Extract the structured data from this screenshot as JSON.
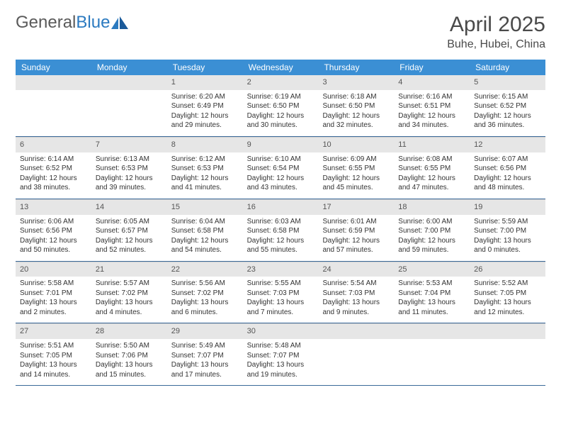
{
  "logo": {
    "word1": "General",
    "word2": "Blue"
  },
  "title": "April 2025",
  "location": "Buhe, Hubei, China",
  "colors": {
    "header_bg": "#3b8fd4",
    "header_text": "#ffffff",
    "daynum_bg": "#e6e6e6",
    "border": "#3b6a9a",
    "logo_gray": "#5a5a5a",
    "logo_blue": "#2b7ac0"
  },
  "weekdays": [
    "Sunday",
    "Monday",
    "Tuesday",
    "Wednesday",
    "Thursday",
    "Friday",
    "Saturday"
  ],
  "weeks": [
    [
      null,
      null,
      {
        "n": "1",
        "sr": "6:20 AM",
        "ss": "6:49 PM",
        "dl": "12 hours and 29 minutes."
      },
      {
        "n": "2",
        "sr": "6:19 AM",
        "ss": "6:50 PM",
        "dl": "12 hours and 30 minutes."
      },
      {
        "n": "3",
        "sr": "6:18 AM",
        "ss": "6:50 PM",
        "dl": "12 hours and 32 minutes."
      },
      {
        "n": "4",
        "sr": "6:16 AM",
        "ss": "6:51 PM",
        "dl": "12 hours and 34 minutes."
      },
      {
        "n": "5",
        "sr": "6:15 AM",
        "ss": "6:52 PM",
        "dl": "12 hours and 36 minutes."
      }
    ],
    [
      {
        "n": "6",
        "sr": "6:14 AM",
        "ss": "6:52 PM",
        "dl": "12 hours and 38 minutes."
      },
      {
        "n": "7",
        "sr": "6:13 AM",
        "ss": "6:53 PM",
        "dl": "12 hours and 39 minutes."
      },
      {
        "n": "8",
        "sr": "6:12 AM",
        "ss": "6:53 PM",
        "dl": "12 hours and 41 minutes."
      },
      {
        "n": "9",
        "sr": "6:10 AM",
        "ss": "6:54 PM",
        "dl": "12 hours and 43 minutes."
      },
      {
        "n": "10",
        "sr": "6:09 AM",
        "ss": "6:55 PM",
        "dl": "12 hours and 45 minutes."
      },
      {
        "n": "11",
        "sr": "6:08 AM",
        "ss": "6:55 PM",
        "dl": "12 hours and 47 minutes."
      },
      {
        "n": "12",
        "sr": "6:07 AM",
        "ss": "6:56 PM",
        "dl": "12 hours and 48 minutes."
      }
    ],
    [
      {
        "n": "13",
        "sr": "6:06 AM",
        "ss": "6:56 PM",
        "dl": "12 hours and 50 minutes."
      },
      {
        "n": "14",
        "sr": "6:05 AM",
        "ss": "6:57 PM",
        "dl": "12 hours and 52 minutes."
      },
      {
        "n": "15",
        "sr": "6:04 AM",
        "ss": "6:58 PM",
        "dl": "12 hours and 54 minutes."
      },
      {
        "n": "16",
        "sr": "6:03 AM",
        "ss": "6:58 PM",
        "dl": "12 hours and 55 minutes."
      },
      {
        "n": "17",
        "sr": "6:01 AM",
        "ss": "6:59 PM",
        "dl": "12 hours and 57 minutes."
      },
      {
        "n": "18",
        "sr": "6:00 AM",
        "ss": "7:00 PM",
        "dl": "12 hours and 59 minutes."
      },
      {
        "n": "19",
        "sr": "5:59 AM",
        "ss": "7:00 PM",
        "dl": "13 hours and 0 minutes."
      }
    ],
    [
      {
        "n": "20",
        "sr": "5:58 AM",
        "ss": "7:01 PM",
        "dl": "13 hours and 2 minutes."
      },
      {
        "n": "21",
        "sr": "5:57 AM",
        "ss": "7:02 PM",
        "dl": "13 hours and 4 minutes."
      },
      {
        "n": "22",
        "sr": "5:56 AM",
        "ss": "7:02 PM",
        "dl": "13 hours and 6 minutes."
      },
      {
        "n": "23",
        "sr": "5:55 AM",
        "ss": "7:03 PM",
        "dl": "13 hours and 7 minutes."
      },
      {
        "n": "24",
        "sr": "5:54 AM",
        "ss": "7:03 PM",
        "dl": "13 hours and 9 minutes."
      },
      {
        "n": "25",
        "sr": "5:53 AM",
        "ss": "7:04 PM",
        "dl": "13 hours and 11 minutes."
      },
      {
        "n": "26",
        "sr": "5:52 AM",
        "ss": "7:05 PM",
        "dl": "13 hours and 12 minutes."
      }
    ],
    [
      {
        "n": "27",
        "sr": "5:51 AM",
        "ss": "7:05 PM",
        "dl": "13 hours and 14 minutes."
      },
      {
        "n": "28",
        "sr": "5:50 AM",
        "ss": "7:06 PM",
        "dl": "13 hours and 15 minutes."
      },
      {
        "n": "29",
        "sr": "5:49 AM",
        "ss": "7:07 PM",
        "dl": "13 hours and 17 minutes."
      },
      {
        "n": "30",
        "sr": "5:48 AM",
        "ss": "7:07 PM",
        "dl": "13 hours and 19 minutes."
      },
      null,
      null,
      null
    ]
  ],
  "labels": {
    "sunrise": "Sunrise: ",
    "sunset": "Sunset: ",
    "daylight": "Daylight: "
  }
}
